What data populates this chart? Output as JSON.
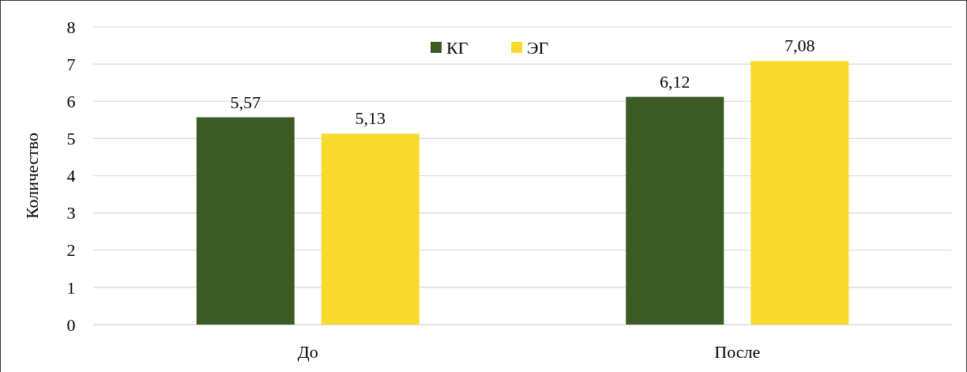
{
  "chart_data": {
    "type": "bar",
    "ylabel": "Количество",
    "categories": [
      "До",
      "После"
    ],
    "series": [
      {
        "name": "КГ",
        "color": "#3b5a24",
        "values": [
          5.57,
          6.12
        ],
        "value_labels": [
          "5,57",
          "6,12"
        ]
      },
      {
        "name": "ЭГ",
        "color": "#f7da2c",
        "values": [
          5.13,
          7.08
        ],
        "value_labels": [
          "5,13",
          "7,08"
        ]
      }
    ],
    "ylim": [
      0,
      8
    ],
    "yticks": [
      0,
      1,
      2,
      3,
      4,
      5,
      6,
      7,
      8
    ],
    "grid": "y",
    "legend": "top"
  }
}
